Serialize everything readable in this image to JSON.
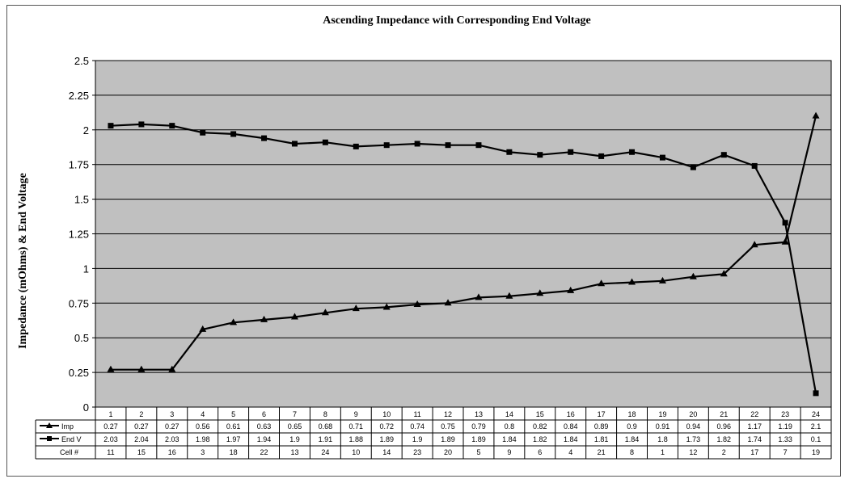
{
  "chart_data": {
    "type": "line",
    "title": "Ascending Impedance with Corresponding End Voltage",
    "ylabel": "Impedance (mOhms) & End Voltage",
    "xlabel": "",
    "ylim": [
      0,
      2.5
    ],
    "yticks": [
      "0",
      "0.25",
      "0.5",
      "0.75",
      "1",
      "1.25",
      "1.5",
      "1.75",
      "2",
      "2.25",
      "2.5"
    ],
    "categories": [
      "1",
      "2",
      "3",
      "4",
      "5",
      "6",
      "7",
      "8",
      "9",
      "10",
      "11",
      "12",
      "13",
      "14",
      "15",
      "16",
      "17",
      "18",
      "19",
      "20",
      "21",
      "22",
      "23",
      "24"
    ],
    "series": [
      {
        "name": "Imp",
        "marker": "triangle",
        "values": [
          0.27,
          0.27,
          0.27,
          0.56,
          0.61,
          0.63,
          0.65,
          0.68,
          0.71,
          0.72,
          0.74,
          0.75,
          0.79,
          0.8,
          0.82,
          0.84,
          0.89,
          0.9,
          0.91,
          0.94,
          0.96,
          1.17,
          1.19,
          2.1
        ]
      },
      {
        "name": "End V",
        "marker": "square",
        "values": [
          2.03,
          2.04,
          2.03,
          1.98,
          1.97,
          1.94,
          1.9,
          1.91,
          1.88,
          1.89,
          1.9,
          1.89,
          1.89,
          1.84,
          1.82,
          1.84,
          1.81,
          1.84,
          1.8,
          1.73,
          1.82,
          1.74,
          1.33,
          0.1
        ]
      }
    ],
    "table": {
      "row_labels": [
        "Imp",
        "End V",
        "Cell #"
      ],
      "rows": [
        [
          "0.27",
          "0.27",
          "0.27",
          "0.56",
          "0.61",
          "0.63",
          "0.65",
          "0.68",
          "0.71",
          "0.72",
          "0.74",
          "0.75",
          "0.79",
          "0.8",
          "0.82",
          "0.84",
          "0.89",
          "0.9",
          "0.91",
          "0.94",
          "0.96",
          "1.17",
          "1.19",
          "2.1"
        ],
        [
          "2.03",
          "2.04",
          "2.03",
          "1.98",
          "1.97",
          "1.94",
          "1.9",
          "1.91",
          "1.88",
          "1.89",
          "1.9",
          "1.89",
          "1.89",
          "1.84",
          "1.82",
          "1.84",
          "1.81",
          "1.84",
          "1.8",
          "1.73",
          "1.82",
          "1.74",
          "1.33",
          "0.1"
        ],
        [
          "11",
          "15",
          "16",
          "3",
          "18",
          "22",
          "13",
          "24",
          "10",
          "14",
          "23",
          "20",
          "5",
          "9",
          "6",
          "4",
          "21",
          "8",
          "1",
          "12",
          "2",
          "17",
          "7",
          "19"
        ]
      ]
    },
    "grid": true,
    "colors": {
      "plot_bg": "#c0c0c0",
      "line": "#000000",
      "grid": "#000000"
    }
  }
}
